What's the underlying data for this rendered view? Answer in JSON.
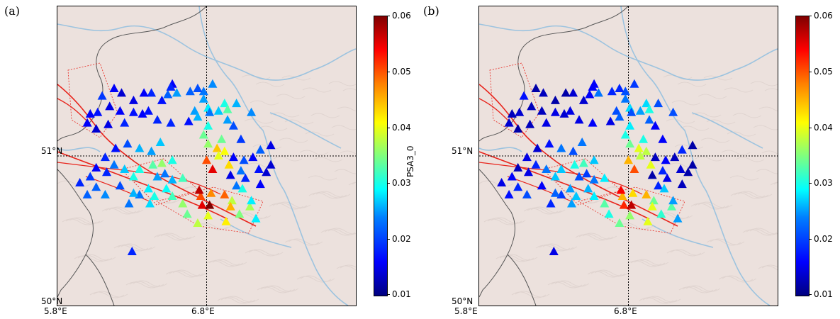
{
  "panels": [
    {
      "label": "(a)",
      "colorbar_label": "PSA3_0"
    },
    {
      "label": "(b)",
      "colorbar_label": ""
    }
  ],
  "axes": {
    "x_ticks": [
      "5.8°E",
      "6.8°E"
    ],
    "y_ticks": [
      "51°N",
      "50°N"
    ]
  },
  "colorbar": {
    "ticks": [
      "0.06",
      "0.05",
      "0.04",
      "0.03",
      "0.02",
      "0.01"
    ],
    "range": [
      0.01,
      0.06
    ],
    "colormap": "jet"
  },
  "map_extent": {
    "lon": [
      5.8,
      7.8
    ],
    "lat": [
      50.0,
      52.0
    ]
  },
  "colors": {
    "land": "#ece1dd",
    "rivers": "#9cc3df",
    "borders": "#555555",
    "faults": "#e8241c",
    "gridlines": "#000000"
  },
  "stations_a": [
    [
      6.43,
      51.42,
      0.018
    ],
    [
      6.54,
      51.41,
      0.021
    ],
    [
      6.57,
      51.48,
      0.016
    ],
    [
      6.78,
      51.43,
      0.022
    ],
    [
      6.84,
      51.48,
      0.023
    ],
    [
      6.6,
      51.42,
      0.024
    ],
    [
      6.74,
      51.45,
      0.02
    ],
    [
      6.69,
      51.43,
      0.021
    ],
    [
      6.31,
      51.37,
      0.015
    ],
    [
      6.5,
      51.37,
      0.017
    ],
    [
      6.56,
      51.46,
      0.018
    ],
    [
      6.18,
      51.45,
      0.016
    ],
    [
      6.23,
      51.42,
      0.014
    ],
    [
      6.1,
      51.4,
      0.019
    ],
    [
      6.37,
      51.28,
      0.016
    ],
    [
      6.38,
      51.42,
      0.016
    ],
    [
      6.15,
      51.33,
      0.015
    ],
    [
      6.07,
      51.29,
      0.017
    ],
    [
      6.02,
      51.28,
      0.016
    ],
    [
      6.14,
      51.21,
      0.015
    ],
    [
      6.25,
      51.22,
      0.018
    ],
    [
      6.31,
      51.29,
      0.017
    ],
    [
      6.22,
      51.3,
      0.016
    ],
    [
      6.78,
      51.38,
      0.024
    ],
    [
      6.81,
      51.32,
      0.028
    ],
    [
      6.82,
      51.29,
      0.022
    ],
    [
      6.92,
      51.35,
      0.03
    ],
    [
      6.94,
      51.31,
      0.033
    ],
    [
      6.88,
      51.3,
      0.026
    ],
    [
      7.0,
      51.35,
      0.025
    ],
    [
      7.1,
      51.29,
      0.023
    ],
    [
      6.81,
      51.2,
      0.03
    ],
    [
      6.98,
      51.2,
      0.02
    ],
    [
      6.94,
      51.24,
      0.024
    ],
    [
      6.56,
      51.22,
      0.018
    ],
    [
      6.47,
      51.24,
      0.018
    ],
    [
      6.41,
      51.3,
      0.017
    ],
    [
      6.06,
      51.18,
      0.014
    ],
    [
      6.0,
      51.22,
      0.016
    ],
    [
      6.68,
      51.23,
      0.017
    ],
    [
      6.72,
      51.3,
      0.024
    ],
    [
      6.74,
      51.26,
      0.025
    ],
    [
      6.81,
      51.08,
      0.036
    ],
    [
      6.87,
      51.05,
      0.044
    ],
    [
      6.78,
      51.14,
      0.034
    ],
    [
      6.8,
      50.97,
      0.05
    ],
    [
      6.84,
      50.91,
      0.055
    ],
    [
      6.95,
      50.94,
      0.043
    ],
    [
      6.88,
      51.0,
      0.04
    ],
    [
      6.98,
      50.99,
      0.016
    ],
    [
      6.9,
      51.11,
      0.034
    ],
    [
      6.92,
      51.03,
      0.041
    ],
    [
      7.03,
      51.11,
      0.019
    ],
    [
      7.16,
      51.04,
      0.021
    ],
    [
      7.23,
      51.07,
      0.015
    ],
    [
      7.11,
      50.99,
      0.016
    ],
    [
      7.05,
      50.97,
      0.02
    ],
    [
      7.23,
      50.94,
      0.014
    ],
    [
      7.2,
      50.89,
      0.014
    ],
    [
      7.15,
      50.91,
      0.017
    ],
    [
      7.03,
      50.9,
      0.022
    ],
    [
      6.96,
      50.87,
      0.015
    ],
    [
      7.06,
      50.85,
      0.018
    ],
    [
      7.0,
      50.8,
      0.022
    ],
    [
      7.16,
      50.81,
      0.016
    ],
    [
      7.04,
      50.78,
      0.03
    ],
    [
      6.92,
      50.74,
      0.049
    ],
    [
      6.77,
      50.67,
      0.055
    ],
    [
      6.76,
      50.73,
      0.05
    ],
    [
      6.75,
      50.77,
      0.057
    ],
    [
      6.82,
      50.67,
      0.06
    ],
    [
      6.83,
      50.75,
      0.047
    ],
    [
      6.97,
      50.7,
      0.038
    ],
    [
      6.96,
      50.66,
      0.045
    ],
    [
      7.09,
      50.66,
      0.037
    ],
    [
      7.1,
      50.7,
      0.028
    ],
    [
      6.81,
      50.6,
      0.04
    ],
    [
      6.93,
      50.56,
      0.042
    ],
    [
      7.02,
      50.61,
      0.035
    ],
    [
      7.13,
      50.58,
      0.028
    ],
    [
      6.74,
      50.55,
      0.038
    ],
    [
      6.67,
      50.61,
      0.034
    ],
    [
      6.64,
      50.68,
      0.036
    ],
    [
      6.57,
      50.73,
      0.032
    ],
    [
      6.64,
      50.85,
      0.032
    ],
    [
      6.53,
      50.78,
      0.029
    ],
    [
      6.57,
      50.84,
      0.025
    ],
    [
      6.47,
      50.86,
      0.024
    ],
    [
      6.52,
      50.88,
      0.022
    ],
    [
      6.45,
      50.73,
      0.03
    ],
    [
      6.41,
      50.78,
      0.028
    ],
    [
      6.42,
      50.68,
      0.027
    ],
    [
      6.35,
      50.74,
      0.022
    ],
    [
      6.31,
      50.86,
      0.03
    ],
    [
      6.35,
      50.91,
      0.03
    ],
    [
      6.25,
      50.91,
      0.026
    ],
    [
      6.18,
      50.94,
      0.022
    ],
    [
      6.13,
      50.89,
      0.018
    ],
    [
      6.22,
      50.8,
      0.02
    ],
    [
      6.31,
      50.75,
      0.025
    ],
    [
      6.12,
      50.74,
      0.023
    ],
    [
      6.06,
      50.79,
      0.021
    ],
    [
      6.0,
      50.74,
      0.021
    ],
    [
      5.95,
      50.82,
      0.018
    ],
    [
      6.02,
      50.86,
      0.019
    ],
    [
      6.06,
      50.92,
      0.016
    ],
    [
      6.12,
      50.99,
      0.018
    ],
    [
      6.19,
      51.05,
      0.017
    ],
    [
      6.27,
      51.08,
      0.02
    ],
    [
      6.35,
      51.05,
      0.025
    ],
    [
      6.49,
      51.09,
      0.026
    ],
    [
      6.43,
      51.03,
      0.024
    ],
    [
      6.5,
      50.95,
      0.036
    ],
    [
      6.57,
      50.97,
      0.03
    ],
    [
      6.44,
      50.94,
      0.033
    ],
    [
      6.28,
      50.68,
      0.022
    ],
    [
      6.3,
      50.36,
      0.018
    ]
  ],
  "stations_b": [
    [
      6.43,
      51.42,
      0.014
    ],
    [
      6.54,
      51.41,
      0.016
    ],
    [
      6.57,
      51.48,
      0.016
    ],
    [
      6.78,
      51.43,
      0.02
    ],
    [
      6.84,
      51.48,
      0.019
    ],
    [
      6.6,
      51.42,
      0.022
    ],
    [
      6.74,
      51.45,
      0.018
    ],
    [
      6.69,
      51.43,
      0.018
    ],
    [
      6.31,
      51.37,
      0.012
    ],
    [
      6.5,
      51.37,
      0.014
    ],
    [
      6.56,
      51.46,
      0.016
    ],
    [
      6.18,
      51.45,
      0.012
    ],
    [
      6.23,
      51.42,
      0.013
    ],
    [
      6.1,
      51.4,
      0.017
    ],
    [
      6.37,
      51.28,
      0.014
    ],
    [
      6.38,
      51.42,
      0.012
    ],
    [
      6.15,
      51.33,
      0.013
    ],
    [
      6.07,
      51.29,
      0.014
    ],
    [
      6.02,
      51.28,
      0.013
    ],
    [
      6.14,
      51.21,
      0.013
    ],
    [
      6.25,
      51.22,
      0.015
    ],
    [
      6.31,
      51.29,
      0.015
    ],
    [
      6.22,
      51.3,
      0.013
    ],
    [
      6.78,
      51.38,
      0.022
    ],
    [
      6.81,
      51.32,
      0.027
    ],
    [
      6.82,
      51.29,
      0.02
    ],
    [
      6.92,
      51.35,
      0.027
    ],
    [
      6.94,
      51.31,
      0.03
    ],
    [
      6.88,
      51.3,
      0.024
    ],
    [
      7.0,
      51.35,
      0.02
    ],
    [
      7.1,
      51.29,
      0.02
    ],
    [
      6.81,
      51.2,
      0.028
    ],
    [
      6.98,
      51.2,
      0.016
    ],
    [
      6.94,
      51.24,
      0.021
    ],
    [
      6.56,
      51.22,
      0.016
    ],
    [
      6.47,
      51.24,
      0.015
    ],
    [
      6.41,
      51.3,
      0.015
    ],
    [
      6.06,
      51.18,
      0.012
    ],
    [
      6.0,
      51.22,
      0.014
    ],
    [
      6.68,
      51.23,
      0.015
    ],
    [
      6.72,
      51.3,
      0.02
    ],
    [
      6.74,
      51.26,
      0.021
    ],
    [
      6.81,
      51.08,
      0.034
    ],
    [
      6.87,
      51.05,
      0.04
    ],
    [
      6.78,
      51.14,
      0.03
    ],
    [
      6.8,
      50.97,
      0.045
    ],
    [
      6.84,
      50.91,
      0.05
    ],
    [
      6.95,
      50.94,
      0.04
    ],
    [
      6.88,
      51.0,
      0.038
    ],
    [
      6.98,
      50.99,
      0.013
    ],
    [
      6.9,
      51.11,
      0.03
    ],
    [
      6.92,
      51.03,
      0.038
    ],
    [
      7.03,
      51.11,
      0.016
    ],
    [
      7.16,
      51.04,
      0.018
    ],
    [
      7.23,
      51.07,
      0.012
    ],
    [
      7.11,
      50.99,
      0.013
    ],
    [
      7.05,
      50.97,
      0.016
    ],
    [
      7.23,
      50.94,
      0.012
    ],
    [
      7.2,
      50.89,
      0.012
    ],
    [
      7.15,
      50.91,
      0.014
    ],
    [
      7.03,
      50.9,
      0.018
    ],
    [
      6.96,
      50.87,
      0.012
    ],
    [
      7.06,
      50.85,
      0.015
    ],
    [
      7.0,
      50.8,
      0.018
    ],
    [
      7.16,
      50.81,
      0.013
    ],
    [
      7.04,
      50.78,
      0.026
    ],
    [
      6.92,
      50.74,
      0.045
    ],
    [
      6.77,
      50.67,
      0.052
    ],
    [
      6.76,
      50.73,
      0.045
    ],
    [
      6.75,
      50.77,
      0.054
    ],
    [
      6.82,
      50.67,
      0.057
    ],
    [
      6.83,
      50.75,
      0.043
    ],
    [
      6.97,
      50.7,
      0.034
    ],
    [
      6.96,
      50.66,
      0.04
    ],
    [
      7.09,
      50.66,
      0.033
    ],
    [
      7.1,
      50.7,
      0.024
    ],
    [
      6.81,
      50.6,
      0.036
    ],
    [
      6.93,
      50.56,
      0.04
    ],
    [
      7.02,
      50.61,
      0.031
    ],
    [
      7.13,
      50.58,
      0.024
    ],
    [
      6.74,
      50.55,
      0.034
    ],
    [
      6.67,
      50.61,
      0.03
    ],
    [
      6.64,
      50.68,
      0.033
    ],
    [
      6.57,
      50.73,
      0.028
    ],
    [
      6.64,
      50.85,
      0.028
    ],
    [
      6.53,
      50.78,
      0.025
    ],
    [
      6.57,
      50.84,
      0.022
    ],
    [
      6.47,
      50.86,
      0.02
    ],
    [
      6.52,
      50.88,
      0.019
    ],
    [
      6.45,
      50.73,
      0.026
    ],
    [
      6.41,
      50.78,
      0.024
    ],
    [
      6.42,
      50.68,
      0.024
    ],
    [
      6.35,
      50.74,
      0.019
    ],
    [
      6.31,
      50.86,
      0.026
    ],
    [
      6.35,
      50.91,
      0.026
    ],
    [
      6.25,
      50.91,
      0.022
    ],
    [
      6.18,
      50.94,
      0.018
    ],
    [
      6.13,
      50.89,
      0.015
    ],
    [
      6.22,
      50.8,
      0.016
    ],
    [
      6.31,
      50.75,
      0.021
    ],
    [
      6.12,
      50.74,
      0.02
    ],
    [
      6.06,
      50.79,
      0.018
    ],
    [
      6.0,
      50.74,
      0.017
    ],
    [
      5.95,
      50.82,
      0.015
    ],
    [
      6.02,
      50.86,
      0.016
    ],
    [
      6.06,
      50.92,
      0.013
    ],
    [
      6.12,
      50.99,
      0.015
    ],
    [
      6.19,
      51.05,
      0.014
    ],
    [
      6.27,
      51.08,
      0.017
    ],
    [
      6.35,
      51.05,
      0.022
    ],
    [
      6.49,
      51.09,
      0.022
    ],
    [
      6.43,
      51.03,
      0.02
    ],
    [
      6.5,
      50.95,
      0.032
    ],
    [
      6.57,
      50.97,
      0.026
    ],
    [
      6.44,
      50.94,
      0.03
    ],
    [
      6.28,
      50.68,
      0.018
    ],
    [
      6.3,
      50.36,
      0.015
    ]
  ]
}
